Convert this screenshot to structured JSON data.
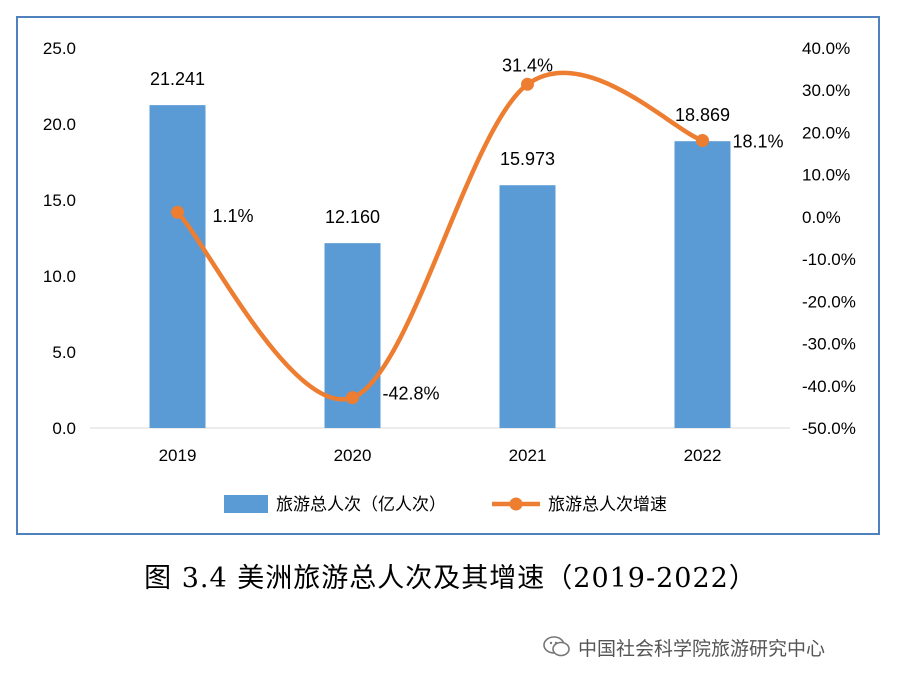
{
  "chart_data": {
    "type": "bar+line",
    "categories": [
      "2019",
      "2020",
      "2021",
      "2022"
    ],
    "series": [
      {
        "name": "旅游总人次（亿人次）",
        "type": "bar",
        "axis": "left",
        "color": "#5b9bd5",
        "values": [
          21.241,
          12.16,
          15.973,
          18.869
        ],
        "labels": [
          "21.241",
          "12.160",
          "15.973",
          "18.869"
        ]
      },
      {
        "name": "旅游总人次增速",
        "type": "line",
        "axis": "right",
        "color": "#ed7d31",
        "values": [
          1.1,
          -42.8,
          31.4,
          18.1
        ],
        "labels": [
          "1.1%",
          "-42.8%",
          "31.4%",
          "18.1%"
        ]
      }
    ],
    "y_left": {
      "ylim": [
        0,
        25
      ],
      "ticks": [
        "0.0",
        "5.0",
        "10.0",
        "15.0",
        "20.0",
        "25.0"
      ]
    },
    "y_right": {
      "ylim": [
        -50,
        40
      ],
      "ticks": [
        "-50.0%",
        "-40.0%",
        "-30.0%",
        "-20.0%",
        "-10.0%",
        "0.0%",
        "10.0%",
        "20.0%",
        "30.0%",
        "40.0%"
      ]
    },
    "legend_position": "bottom",
    "grid": false
  },
  "caption": "图 3.4 美洲旅游总人次及其增速（2019-2022）",
  "watermark": "中国社会科学院旅游研究中心"
}
